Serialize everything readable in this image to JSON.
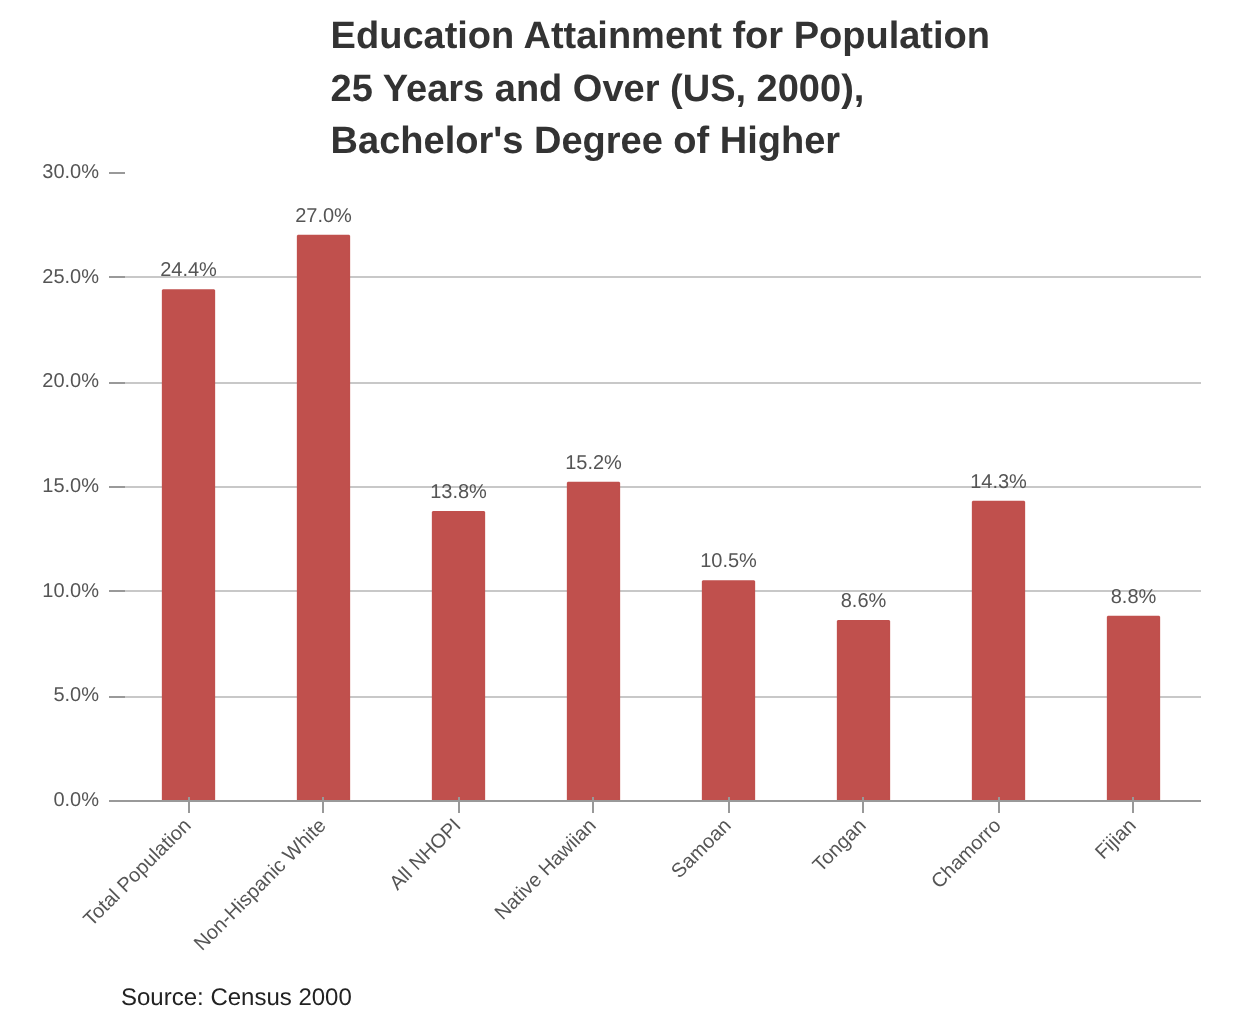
{
  "chart_data": {
    "type": "bar",
    "title": "Education Attainment for Population 25 Years and Over (US, 2000), Bachelor's Degree of Higher",
    "categories": [
      "Total Population",
      "Non-Hispanic White",
      "All NHOPI",
      "Native Hawiian",
      "Samoan",
      "Tongan",
      "Chamorro",
      "Fijian"
    ],
    "values": [
      24.4,
      27.0,
      13.8,
      15.2,
      10.5,
      8.6,
      14.3,
      8.8
    ],
    "value_labels": [
      "24.4%",
      "27.0%",
      "13.8%",
      "15.2%",
      "10.5%",
      "8.6%",
      "14.3%",
      "8.8%"
    ],
    "color": "#c0504d",
    "ylim": [
      0,
      30
    ],
    "yticks": [
      {
        "value": 0,
        "label": "0.0%"
      },
      {
        "value": 5,
        "label": "5.0%"
      },
      {
        "value": 10,
        "label": "10.0%"
      },
      {
        "value": 15,
        "label": "15.0%"
      },
      {
        "value": 20,
        "label": "20.0%"
      },
      {
        "value": 25,
        "label": "25.0%"
      },
      {
        "value": 30,
        "label": "30.0%"
      }
    ],
    "grid": "y",
    "annotations": [
      "Source: Census 2000"
    ]
  }
}
